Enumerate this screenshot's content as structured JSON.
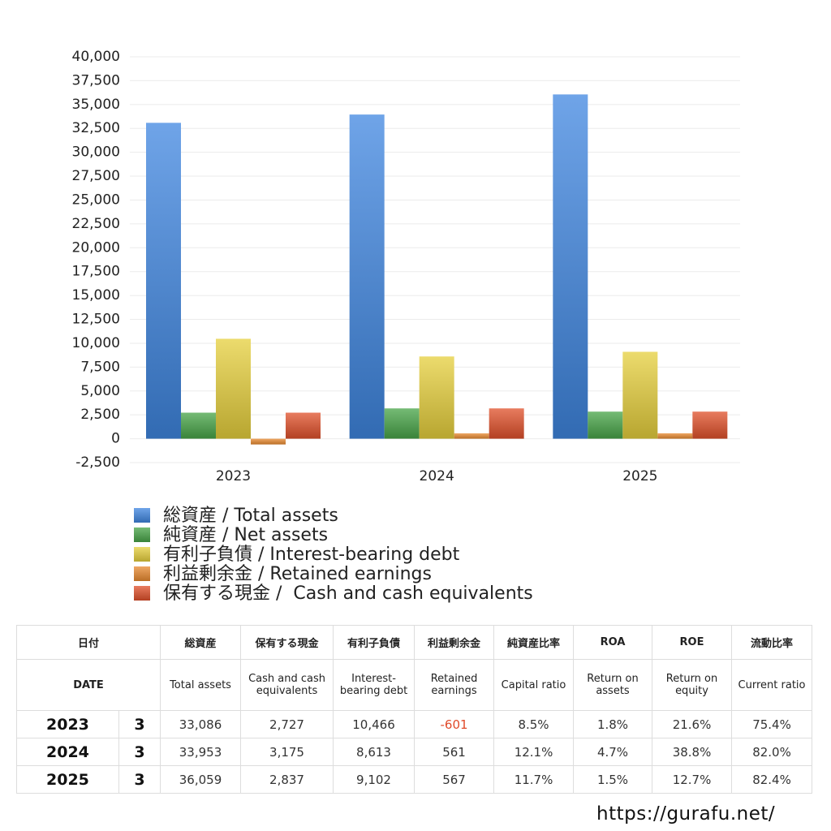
{
  "chart_data": {
    "type": "bar",
    "categories": [
      "2023",
      "2024",
      "2025"
    ],
    "series": [
      {
        "name": "総資産 / Total assets",
        "color": "#3f86e0",
        "values": [
          33086,
          33953,
          36059
        ]
      },
      {
        "name": "純資産 / Net assets",
        "color": "#47a447",
        "values": [
          2727,
          3175,
          2837
        ]
      },
      {
        "name": "有利子負債 / Interest-bearing debt",
        "color": "#e6cf3c",
        "values": [
          10466,
          8613,
          9102
        ]
      },
      {
        "name": "利益剰余金 / Retained earnings",
        "color": "#e88a30",
        "values": [
          -601,
          561,
          567
        ]
      },
      {
        "name": "保有する現金 /  Cash and cash equivalents",
        "color": "#e0502a",
        "values": [
          2727,
          3175,
          2837
        ]
      }
    ],
    "ylim": [
      -2500,
      40000
    ],
    "yticks": [
      {
        "value": -2500,
        "label": "-2,500"
      },
      0,
      {
        "value": 2500,
        "label": "2,500"
      },
      {
        "value": 5000,
        "label": "5,000"
      },
      {
        "value": 7500,
        "label": "7,500"
      },
      {
        "value": 10000,
        "label": "10,000"
      },
      {
        "value": 12500,
        "label": "12,500"
      },
      {
        "value": 15000,
        "label": "15,000"
      },
      {
        "value": 17500,
        "label": "17,500"
      },
      {
        "value": 20000,
        "label": "20,000"
      },
      {
        "value": 22500,
        "label": "22,500"
      },
      {
        "value": 25000,
        "label": "25,000"
      },
      {
        "value": 27500,
        "label": "27,500"
      },
      {
        "value": 30000,
        "label": "30,000"
      },
      {
        "value": 32500,
        "label": "32,500"
      },
      {
        "value": 35000,
        "label": "35,000"
      },
      {
        "value": 37500,
        "label": "37,500"
      },
      {
        "value": 40000,
        "label": "40,000"
      }
    ],
    "grid": true
  },
  "table": {
    "header": [
      [
        "日付",
        "総資産",
        "保有する現金",
        "有利子負債",
        "利益剰余金",
        "純資産比率",
        "ROA",
        "ROE",
        "流動比率"
      ],
      [
        "DATE",
        "Total assets",
        "Cash and cash equivalents",
        "Interest-bearing debt",
        "Retained earnings",
        "Capital ratio",
        "Return on assets",
        "Return on equity",
        "Current ratio"
      ]
    ],
    "rows": [
      [
        "2023",
        "3",
        "33,086",
        "2,727",
        "10,466",
        "-601",
        "8.5%",
        "1.8%",
        "21.6%",
        "75.4%"
      ],
      [
        "2024",
        "3",
        "33,953",
        "3,175",
        "8,613",
        "561",
        "12.1%",
        "4.7%",
        "38.8%",
        "82.0%"
      ],
      [
        "2025",
        "3",
        "36,059",
        "2,837",
        "9,102",
        "567",
        "11.7%",
        "1.5%",
        "12.7%",
        "82.4%"
      ]
    ]
  },
  "footer": "https://gurafu.net/"
}
